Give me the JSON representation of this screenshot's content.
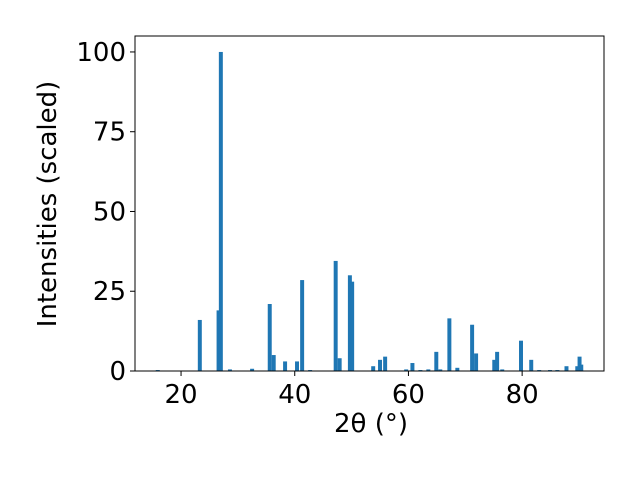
{
  "chart_data": {
    "type": "bar",
    "x_label": "2θ (°)",
    "y_label": "Intensities (scaled)",
    "x": [
      15.9,
      23.3,
      26.6,
      27.0,
      28.6,
      32.5,
      35.6,
      36.3,
      38.3,
      40.4,
      41.3,
      42.7,
      47.2,
      47.9,
      49.7,
      50.1,
      53.8,
      55.0,
      55.9,
      59.6,
      60.7,
      62.1,
      63.5,
      64.9,
      65.6,
      67.2,
      68.6,
      71.2,
      71.9,
      75.1,
      75.6,
      76.5,
      79.8,
      81.6,
      83.0,
      84.9,
      86.2,
      87.8,
      89.7,
      90.1,
      90.4
    ],
    "values": [
      0.3,
      16,
      19,
      100,
      0.5,
      0.7,
      21,
      5,
      3,
      3,
      28.5,
      0.3,
      34.5,
      4,
      30,
      28,
      1.5,
      3.5,
      4.5,
      0.5,
      2.5,
      0.3,
      0.5,
      6,
      0.5,
      16.5,
      1,
      14.5,
      5.5,
      3.5,
      6,
      0.5,
      9.5,
      3.5,
      0.3,
      0.3,
      0.3,
      1.5,
      1.5,
      4.5,
      2
    ],
    "color": "#1f77b4",
    "xlim": [
      11.9,
      94.4
    ],
    "xticks": [
      20,
      40,
      60,
      80
    ],
    "ylim": [
      0,
      105
    ],
    "yticks": [
      0,
      25,
      50,
      75,
      100
    ]
  }
}
